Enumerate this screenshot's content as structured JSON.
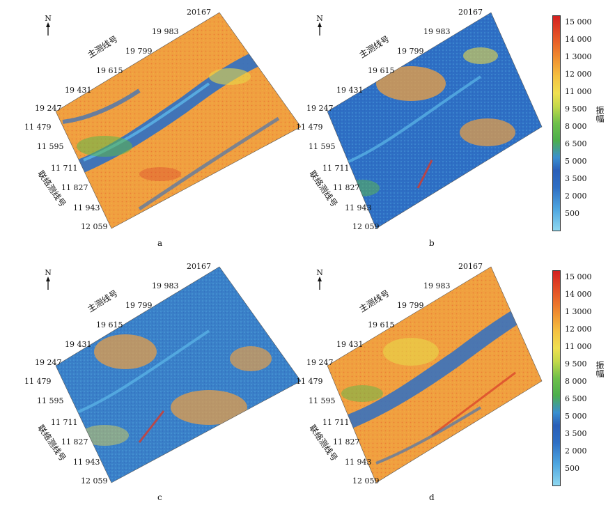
{
  "north_label": "N",
  "main_line_title": "主测线号",
  "tie_line_title": "联络测线号",
  "main_line_labels": [
    "20167",
    "19 983",
    "19 799",
    "19 615",
    "19 431",
    "19 247"
  ],
  "tie_line_labels": [
    "11 479",
    "11 595",
    "11 711",
    "11 827",
    "11 943",
    "12 059"
  ],
  "panels": [
    {
      "caption": "a"
    },
    {
      "caption": "b"
    },
    {
      "caption": "c"
    },
    {
      "caption": "d"
    }
  ],
  "colorbar": {
    "unit": "振幅",
    "ticks": [
      "15 000",
      "14 000",
      "1 3000",
      "12 000",
      "11 000",
      "9 500",
      "8 000",
      "6 500",
      "5 000",
      "3 500",
      "2 000",
      "500"
    ]
  },
  "colors": {
    "blue": "#2e6fc4",
    "cyan": "#5cb8e8",
    "green": "#5db84a",
    "yellow": "#e8d84a",
    "orange": "#f0a040",
    "red": "#d83a2a"
  }
}
